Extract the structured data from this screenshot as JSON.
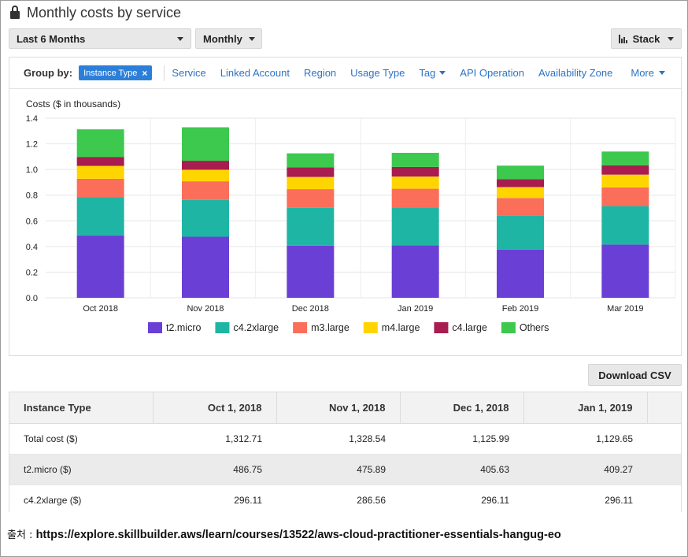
{
  "header": {
    "title": "Monthly costs by service",
    "lock_icon": "lock-icon"
  },
  "toolbar": {
    "range_label": "Last 6 Months",
    "granularity_label": "Monthly",
    "stack_label": "Stack"
  },
  "group_by": {
    "label": "Group by:",
    "active_chip": "Instance Type",
    "options": [
      "Service",
      "Linked Account",
      "Region",
      "Usage Type",
      "Tag",
      "API Operation",
      "Availability Zone"
    ],
    "more_label": "More"
  },
  "chart_data": {
    "type": "bar",
    "stacked": true,
    "ylabel": "Costs ($ in thousands)",
    "ylim": [
      0,
      1.4
    ],
    "yticks": [
      "0.0",
      "0.2",
      "0.4",
      "0.6",
      "0.8",
      "1.0",
      "1.2",
      "1.4"
    ],
    "categories": [
      "Oct 2018",
      "Nov 2018",
      "Dec 2018",
      "Jan 2019",
      "Feb 2019",
      "Mar 2019"
    ],
    "grid": true,
    "legend": "bottom",
    "series": [
      {
        "name": "t2.micro",
        "color": "#6a3fd6",
        "values": [
          0.487,
          0.476,
          0.406,
          0.409,
          0.375,
          0.415
        ]
      },
      {
        "name": "c4.2xlarge",
        "color": "#1fb5a4",
        "values": [
          0.296,
          0.287,
          0.296,
          0.296,
          0.268,
          0.3
        ]
      },
      {
        "name": "m3.large",
        "color": "#fb6e5a",
        "values": [
          0.145,
          0.145,
          0.145,
          0.145,
          0.135,
          0.145
        ]
      },
      {
        "name": "m4.large",
        "color": "#ffd500",
        "values": [
          0.1,
          0.09,
          0.095,
          0.095,
          0.085,
          0.1
        ]
      },
      {
        "name": "c4.large",
        "color": "#a81c50",
        "values": [
          0.07,
          0.07,
          0.075,
          0.075,
          0.062,
          0.072
        ]
      },
      {
        "name": "Others",
        "color": "#3cc94e",
        "values": [
          0.215,
          0.261,
          0.109,
          0.11,
          0.105,
          0.108
        ]
      }
    ]
  },
  "download_label": "Download CSV",
  "table": {
    "headers": [
      "Instance Type",
      "Oct 1, 2018",
      "Nov 1, 2018",
      "Dec 1, 2018",
      "Jan 1, 2019"
    ],
    "rows": [
      [
        "Total cost ($)",
        "1,312.71",
        "1,328.54",
        "1,125.99",
        "1,129.65"
      ],
      [
        "t2.micro ($)",
        "486.75",
        "475.89",
        "405.63",
        "409.27"
      ],
      [
        "c4.2xlarge ($)",
        "296.11",
        "286.56",
        "296.11",
        "296.11"
      ]
    ]
  },
  "source": {
    "label": "출처 : ",
    "url": "https://explore.skillbuilder.aws/learn/courses/13522/aws-cloud-practitioner-essentials-hangug-eo"
  }
}
